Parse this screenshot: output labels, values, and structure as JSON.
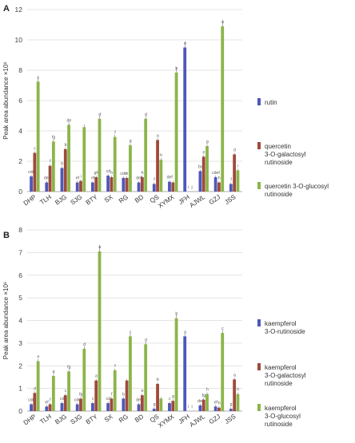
{
  "chart_data": [
    {
      "panel": "A",
      "type": "bar",
      "ylabel": "Peak  area abundance ×10⁶",
      "ylim": [
        0,
        12
      ],
      "yticks": [
        0,
        2,
        4,
        6,
        8,
        10,
        12
      ],
      "categories": [
        "DHP",
        "TLH",
        "BJG",
        "SJG",
        "BTY",
        "SX",
        "RG",
        "BD",
        "QS",
        "XYMX",
        "JFH",
        "AJWL",
        "GZJ",
        "JSS"
      ],
      "series": [
        {
          "name": "rutin",
          "color": "#4e58b8",
          "values": [
            1.0,
            0.6,
            1.55,
            0.6,
            0.6,
            1.05,
            0.9,
            0.6,
            0.5,
            0.65,
            9.5,
            1.35,
            0.95,
            0.5
          ],
          "letters": [
            "cde",
            "def",
            "b",
            "ef",
            "ef",
            "cd",
            "cde",
            "def",
            "f",
            "def",
            "a",
            "bc",
            "cdef",
            "f"
          ]
        },
        {
          "name": "quercetin 3-O-galactosyl rutinoside",
          "color": "#9e4a3c",
          "values": [
            2.55,
            1.7,
            2.8,
            0.7,
            0.95,
            0.95,
            0.9,
            0.95,
            3.4,
            0.6,
            0.0,
            2.3,
            0.6,
            2.45
          ],
          "letters": [
            "c",
            "f",
            "b",
            "i",
            "gh",
            "h",
            "h",
            "h",
            "a",
            "",
            "i",
            "e",
            "h",
            "d"
          ]
        },
        {
          "name": "quercetin 3-O-glucosyl rutinoside",
          "color": "#8bb54a",
          "values": [
            7.25,
            3.3,
            4.4,
            4.25,
            4.8,
            3.6,
            3.05,
            4.8,
            2.1,
            7.85,
            0.0,
            3.0,
            10.9,
            1.4
          ],
          "letters": [
            "c",
            "fg",
            "de",
            "",
            "d",
            "f",
            "g",
            "d",
            "h",
            "b",
            "j",
            "g",
            "a",
            "i"
          ]
        }
      ],
      "legend_position": "right"
    },
    {
      "panel": "B",
      "type": "bar",
      "ylabel": "Peak area abundance ×10⁶",
      "ylim": [
        0,
        8
      ],
      "yticks": [
        0,
        1,
        2,
        3,
        4,
        5,
        6,
        7,
        8
      ],
      "categories": [
        "DHP",
        "TLH",
        "BJG",
        "SJG",
        "BTY",
        "SX",
        "RG",
        "BD",
        "QS",
        "XYMX",
        "JFH",
        "AJWL",
        "GZJ",
        "JSS"
      ],
      "series": [
        {
          "name": "kaempferol 3-O-rutinoside",
          "color": "#4e58b8",
          "values": [
            0.3,
            0.2,
            0.35,
            0.3,
            0.35,
            0.35,
            0.55,
            0.3,
            0.1,
            0.35,
            3.3,
            0.25,
            0.2,
            0.1
          ],
          "letters": [
            "cde",
            "ef",
            "cd",
            "cde",
            "c",
            "cd",
            "b",
            "def",
            "g",
            "c",
            "a",
            "def",
            "ef",
            "g"
          ]
        },
        {
          "name": "kaempferol 3-O-galactosyl rutinoside",
          "color": "#9e4a3c",
          "values": [
            0.8,
            0.3,
            0.7,
            0.55,
            1.35,
            0.55,
            1.35,
            0.7,
            1.2,
            0.45,
            0.0,
            0.5,
            0.15,
            1.4
          ],
          "letters": [
            "d",
            "f",
            "c",
            "fg",
            "a",
            "f",
            "",
            "e",
            "b",
            "g",
            "i",
            "fg",
            "h",
            "a"
          ]
        },
        {
          "name": "kaempferol 3-O-glucosyl rutinoside",
          "color": "#8bb54a",
          "values": [
            2.2,
            1.55,
            1.75,
            2.75,
            7.05,
            1.8,
            3.3,
            2.95,
            0.55,
            4.1,
            0.0,
            0.75,
            3.45,
            0.75
          ],
          "letters": [
            "e",
            "g",
            "fg",
            "d",
            "a",
            "f",
            "c",
            "d",
            "",
            "b",
            "i",
            "h",
            "c",
            "h"
          ]
        }
      ],
      "legend_position": "right"
    }
  ]
}
